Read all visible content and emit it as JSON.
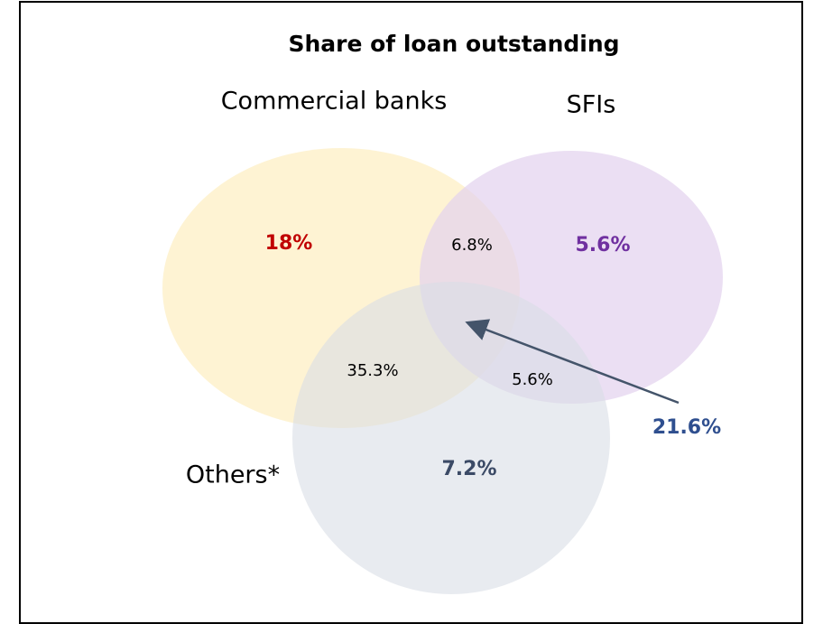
{
  "title": "Share of loan outstanding",
  "sets": [
    {
      "label": "Commercial banks"
    },
    {
      "label": "SFIs"
    },
    {
      "label": "Others*"
    }
  ],
  "regions": [
    {
      "label": "18%"
    },
    {
      "label": "6.8%"
    },
    {
      "label": "5.6%"
    },
    {
      "label": "35.3%"
    },
    {
      "label": "5.6%"
    },
    {
      "label": "7.2%"
    },
    {
      "label": "21.6%"
    }
  ]
}
